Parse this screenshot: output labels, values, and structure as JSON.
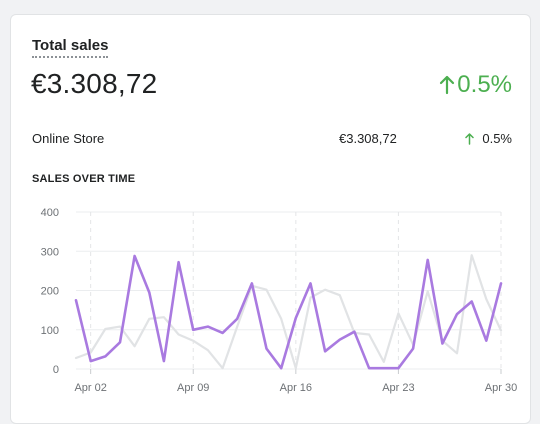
{
  "card": {
    "title": "Total sales",
    "total": "€3.308,72",
    "total_change": "0.5%",
    "change_color": "#4caf50",
    "change_icon": "arrow-up-icon"
  },
  "breakdown": [
    {
      "label": "Online Store",
      "amount": "€3.308,72",
      "change": "0.5%"
    }
  ],
  "section_title": "SALES OVER TIME",
  "chart_data": {
    "type": "line",
    "ylim": [
      0,
      400
    ],
    "y_ticks": [
      "0",
      "100",
      "200",
      "300",
      "400"
    ],
    "x_tick_labels": [
      "Apr 02",
      "Apr 09",
      "Apr 16",
      "Apr 23",
      "Apr 30"
    ],
    "x_tick_days": [
      2,
      9,
      16,
      23,
      30
    ],
    "x_days": [
      1,
      2,
      3,
      4,
      5,
      6,
      7,
      8,
      9,
      10,
      11,
      12,
      13,
      14,
      15,
      16,
      17,
      18,
      19,
      20,
      21,
      22,
      23,
      24,
      25,
      26,
      27,
      28,
      29,
      30
    ],
    "grid": true,
    "series": [
      {
        "color": "#a97ae0",
        "values": [
          175,
          20,
          32,
          68,
          288,
          195,
          20,
          272,
          100,
          108,
          92,
          128,
          218,
          52,
          2,
          130,
          218,
          45,
          75,
          95,
          2,
          2,
          2,
          52,
          278,
          65,
          140,
          172,
          72,
          218
        ]
      },
      {
        "color": "#e1e3e5",
        "values": [
          28,
          42,
          102,
          108,
          58,
          128,
          132,
          88,
          72,
          48,
          2,
          108,
          212,
          202,
          128,
          2,
          182,
          202,
          188,
          92,
          88,
          18,
          142,
          62,
          198,
          72,
          40,
          290,
          178,
          98
        ]
      }
    ]
  }
}
